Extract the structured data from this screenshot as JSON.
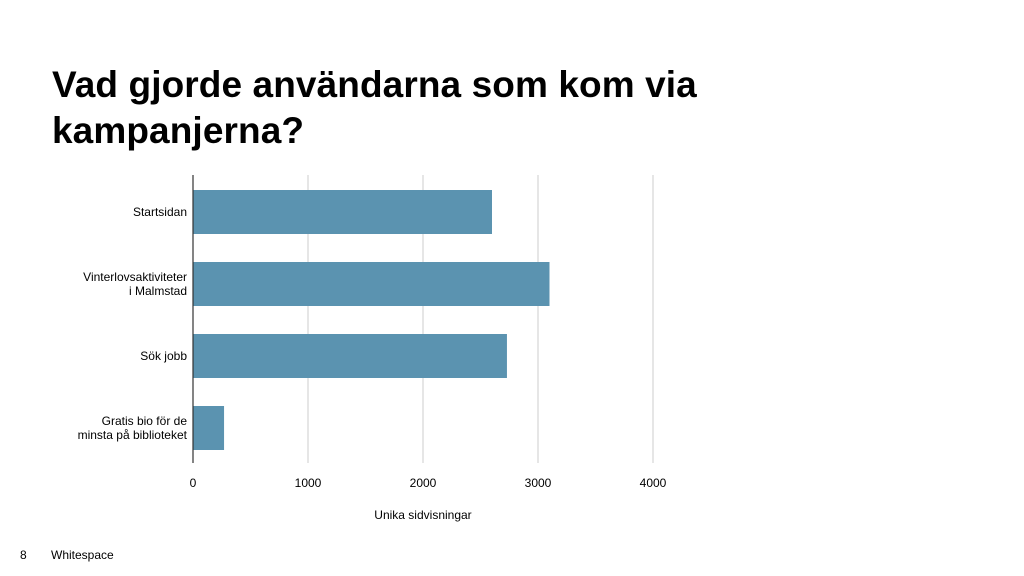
{
  "slide": {
    "title": "Vad gjorde användarna som kom via kampanjerna?",
    "page_number": "8",
    "footer_text": "Whitespace"
  },
  "chart_data": {
    "type": "bar",
    "orientation": "horizontal",
    "categories": [
      "Startsidan",
      "Vinterlovsaktiviteter i Malmstad",
      "Sök jobb",
      "Gratis bio för de minsta på biblioteket"
    ],
    "values": [
      2600,
      3100,
      2730,
      270
    ],
    "xlabel": "Unika sidvisningar",
    "ylabel": "",
    "xlim": [
      0,
      4000
    ],
    "xticks": [
      "0",
      "1000",
      "2000",
      "3000",
      "4000"
    ],
    "grid": true,
    "legend": "none",
    "bar_color": "#5b93b0",
    "grid_color": "#cccccc",
    "axis_color": "#333333"
  }
}
